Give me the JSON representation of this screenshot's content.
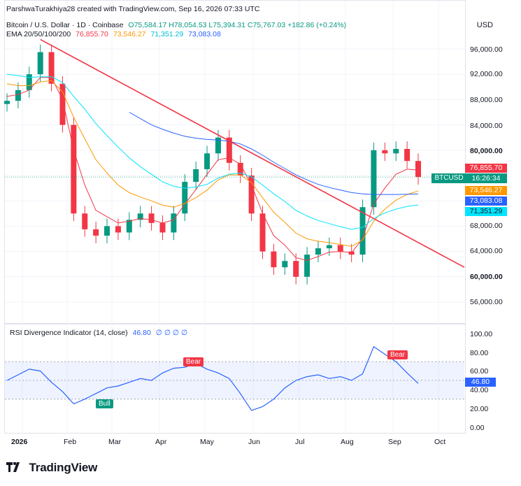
{
  "header": {
    "attribution": "ParshwaTurakhiya28 created with TradingView.com, Sep 16, 2026 07:33 UTC",
    "symbol_line": "Bitcoin / U.S. Dollar · 1D · Coinbase",
    "ohlc": "O75,584.17 H78,054.53 L75,394.31 C75,767.03 +182.86 (+0.24%)",
    "ema_label": "EMA 20/50/100/200",
    "ema_values": [
      "76,855.70",
      "73,546.27",
      "71,351.29",
      "73,083.08"
    ]
  },
  "currency": "USD",
  "price_axis": {
    "ticks": [
      "96,000.00",
      "92,000.00",
      "88,000.00",
      "84,000.00",
      "80,000.00",
      "68,000.00",
      "64,000.00",
      "60,000.00",
      "56,000.00"
    ],
    "bold_ticks": [
      "80,000.00",
      "60,000.00"
    ]
  },
  "price_tags": {
    "ema20": "76,855.70",
    "symbol": "BTCUSD",
    "countdown": "16:26:34",
    "ema50": "73,546.27",
    "ema200": "73,083.08",
    "ema100": "71,351.29"
  },
  "rsi": {
    "label": "RSI Divergence Indicator (14, close)",
    "value": "46.80",
    "flags": "∅ ∅ ∅ ∅",
    "ticks": [
      "100.00",
      "80.00",
      "60.00",
      "40.00",
      "20.00",
      "0.00"
    ],
    "tag": "46.80",
    "bull_label": "Bull",
    "bear_label_1": "Bear",
    "bear_label_2": "Bear"
  },
  "time_axis": [
    "2026",
    "Feb",
    "Mar",
    "Apr",
    "May",
    "Jun",
    "Jul",
    "Aug",
    "Sep",
    "Oct"
  ],
  "brand": "TradingView",
  "colors": {
    "up": "#089981",
    "down": "#f23645",
    "ema20": "#f23645",
    "ema50": "#ff9800",
    "ema100": "#00e5ff",
    "ema200": "#2962ff",
    "trendline": "#f23645",
    "rsi": "#2962ff"
  },
  "chart_data": {
    "type": "line",
    "title": "Bitcoin / U.S. Dollar · 1D · Coinbase",
    "x": [
      "2026-01-01",
      "2026-01-07",
      "2026-01-14",
      "2026-01-21",
      "2026-01-28",
      "2026-02-04",
      "2026-02-11",
      "2026-02-18",
      "2026-02-25",
      "2026-03-04",
      "2026-03-11",
      "2026-03-18",
      "2026-03-25",
      "2026-04-01",
      "2026-04-08",
      "2026-04-15",
      "2026-04-22",
      "2026-04-29",
      "2026-05-06",
      "2026-05-13",
      "2026-05-20",
      "2026-05-27",
      "2026-06-03",
      "2026-06-10",
      "2026-06-17",
      "2026-06-24",
      "2026-07-01",
      "2026-07-08",
      "2026-07-15",
      "2026-07-22",
      "2026-07-29",
      "2026-08-05",
      "2026-08-12",
      "2026-08-19",
      "2026-08-26",
      "2026-09-02",
      "2026-09-09",
      "2026-09-15"
    ],
    "series": [
      {
        "name": "BTCUSD",
        "values": [
          87800,
          89500,
          92000,
          95500,
          90500,
          84000,
          70000,
          67500,
          66500,
          68000,
          67000,
          69000,
          70000,
          68500,
          67000,
          70000,
          75000,
          77000,
          79500,
          82000,
          78000,
          76000,
          70000,
          64000,
          61500,
          62500,
          60000,
          63500,
          64500,
          65000,
          64000,
          63500,
          71000,
          80000,
          79500,
          80200,
          78300,
          75767
        ]
      },
      {
        "name": "EMA 20",
        "values": [
          88500,
          88800,
          89500,
          91500,
          91500,
          88000,
          80000,
          74500,
          70500,
          69500,
          68500,
          68800,
          69200,
          69000,
          68500,
          69000,
          71500,
          73800,
          76200,
          78500,
          78800,
          77800,
          74500,
          70000,
          66500,
          65000,
          63000,
          62600,
          63200,
          63900,
          64000,
          63800,
          66000,
          71500,
          74000,
          76200,
          77000,
          76856
        ]
      },
      {
        "name": "EMA 50",
        "values": [
          90500,
          90200,
          90200,
          90800,
          91000,
          89200,
          85200,
          81800,
          78500,
          76400,
          74500,
          73300,
          72600,
          72000,
          71300,
          71000,
          71600,
          72500,
          73700,
          75300,
          76100,
          76100,
          74900,
          72500,
          70200,
          68600,
          66900,
          66000,
          65600,
          65400,
          65100,
          64800,
          65800,
          68800,
          70700,
          72100,
          73000,
          73546
        ]
      },
      {
        "name": "EMA 100",
        "values": [
          92000,
          91800,
          91500,
          91600,
          91600,
          90700,
          88500,
          86500,
          84200,
          82300,
          80500,
          78800,
          77400,
          76200,
          75000,
          74300,
          74000,
          74200,
          74600,
          75600,
          76200,
          76400,
          75800,
          74500,
          73100,
          71900,
          70500,
          69600,
          68900,
          68400,
          67900,
          67500,
          67800,
          69200,
          70100,
          70700,
          71100,
          71351
        ]
      },
      {
        "name": "EMA 200",
        "values": [
          null,
          null,
          null,
          null,
          null,
          null,
          null,
          null,
          null,
          null,
          null,
          86000,
          85000,
          84000,
          83300,
          82700,
          82200,
          81900,
          81700,
          81600,
          81400,
          81000,
          80200,
          79200,
          78100,
          77100,
          76100,
          75300,
          74600,
          74100,
          73700,
          73300,
          73100,
          73000,
          73000,
          73000,
          73050,
          73083
        ]
      }
    ],
    "ylim": [
      52500,
      100000
    ],
    "rsi": {
      "name": "RSI Divergence Indicator (14, close)",
      "ylim": [
        0,
        100
      ],
      "values": [
        50,
        56,
        62,
        60,
        48,
        38,
        25,
        30,
        36,
        42,
        44,
        48,
        52,
        50,
        58,
        63,
        64,
        68,
        62,
        58,
        52,
        36,
        18,
        22,
        30,
        42,
        50,
        54,
        56,
        52,
        54,
        50,
        57,
        86,
        78,
        70,
        58,
        46.8
      ]
    }
  }
}
